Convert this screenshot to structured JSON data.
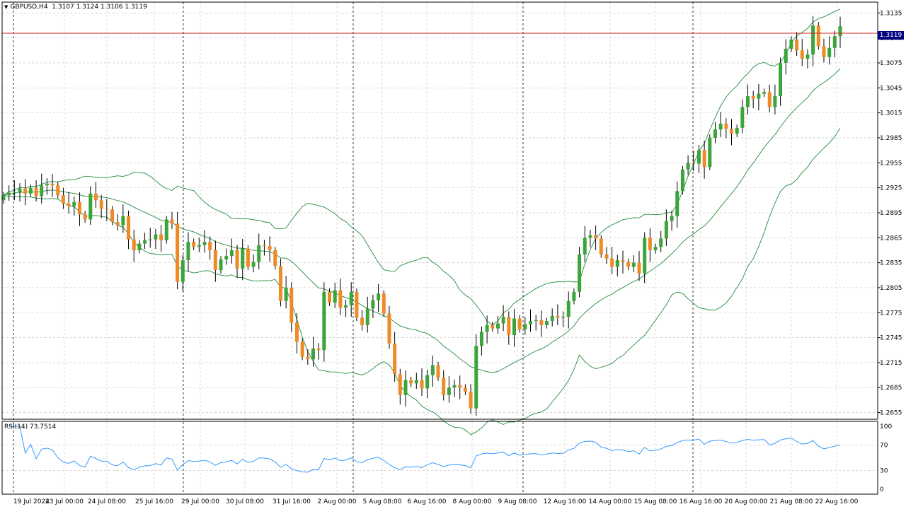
{
  "window": {
    "symbol": "GBPUSD,H4",
    "ohlc": "1.3107 1.3124 1.3106 1.3119",
    "current_price_label": "1.3119",
    "menu_icon": "triangle-down-icon"
  },
  "indicator": {
    "label": "RSI(14) 73.7514",
    "levels": [
      100,
      70,
      30,
      0
    ]
  },
  "colors": {
    "bull": "#3aa53a",
    "bear": "#f08a24",
    "band": "#228b3c",
    "rsi": "#1e90ff",
    "bid_line": "#d22020",
    "grid": "#c0c0c0"
  },
  "chart_data": {
    "type": "candlestick",
    "price_axis_ticks": [
      1.3135,
      1.3105,
      1.3075,
      1.3045,
      1.3015,
      1.2985,
      1.2955,
      1.2925,
      1.2895,
      1.2865,
      1.2835,
      1.2805,
      1.2775,
      1.2745,
      1.2715,
      1.2685,
      1.2655
    ],
    "price_range": [
      1.2647,
      1.3148
    ],
    "rsi_range": [
      0,
      100
    ],
    "time_labels": [
      "19 Jul 2024",
      "23 Jul 00:00",
      "24 Jul 08:00",
      "25 Jul 16:00",
      "29 Jul 00:00",
      "30 Jul 08:00",
      "31 Jul 16:00",
      "2 Aug 00:00",
      "5 Aug 08:00",
      "6 Aug 16:00",
      "8 Aug 00:00",
      "9 Aug 08:00",
      "12 Aug 16:00",
      "14 Aug 00:00",
      "15 Aug 08:00",
      "16 Aug 16:00",
      "20 Aug 00:00",
      "21 Aug 08:00",
      "22 Aug 16:00"
    ],
    "current_price": 1.3119,
    "closes": [
      1.2916,
      1.2919,
      1.292,
      1.2924,
      1.2918,
      1.2925,
      1.2915,
      1.2928,
      1.293,
      1.2928,
      1.2916,
      1.2906,
      1.2903,
      1.2908,
      1.2893,
      1.2887,
      1.2918,
      1.291,
      1.29,
      1.2899,
      1.2884,
      1.288,
      1.2891,
      1.2863,
      1.285,
      1.2858,
      1.2862,
      1.2863,
      1.2869,
      1.2862,
      1.2887,
      1.2882,
      1.2812,
      1.2838,
      1.286,
      1.2854,
      1.2856,
      1.286,
      1.285,
      1.2826,
      1.2839,
      1.2843,
      1.285,
      1.2828,
      1.2852,
      1.283,
      1.2836,
      1.2856,
      1.2855,
      1.285,
      1.2831,
      1.2789,
      1.2805,
      1.2763,
      1.274,
      1.2722,
      1.2719,
      1.2732,
      1.273,
      1.28,
      1.2787,
      1.2802,
      1.2781,
      1.2784,
      1.28,
      1.2769,
      1.276,
      1.278,
      1.279,
      1.2798,
      1.2774,
      1.2738,
      1.2701,
      1.2676,
      1.2694,
      1.269,
      1.2694,
      1.2684,
      1.27,
      1.2712,
      1.2697,
      1.2676,
      1.2685,
      1.2688,
      1.2685,
      1.268,
      1.266,
      1.2735,
      1.2752,
      1.276,
      1.2756,
      1.2762,
      1.277,
      1.2748,
      1.2768,
      1.2755,
      1.2761,
      1.2765,
      1.2766,
      1.276,
      1.2765,
      1.2771,
      1.2769,
      1.277,
      1.2789,
      1.28,
      1.2845,
      1.2865,
      1.2868,
      1.2864,
      1.2845,
      1.284,
      1.283,
      1.2838,
      1.2836,
      1.283,
      1.2835,
      1.2822,
      1.2865,
      1.285,
      1.2854,
      1.2864,
      1.2885,
      1.2891,
      1.2921,
      1.2947,
      1.2955,
      1.2954,
      1.297,
      1.295,
      1.2985,
      1.2995,
      1.3002,
      1.2996,
      1.299,
      1.2997,
      1.3022,
      1.3035,
      1.3032,
      1.3038,
      1.304,
      1.3022,
      1.3035,
      1.3075,
      1.3092,
      1.3103,
      1.309,
      1.308,
      1.3085,
      1.312,
      1.3095,
      1.3082,
      1.3093,
      1.3107,
      1.3119
    ]
  }
}
